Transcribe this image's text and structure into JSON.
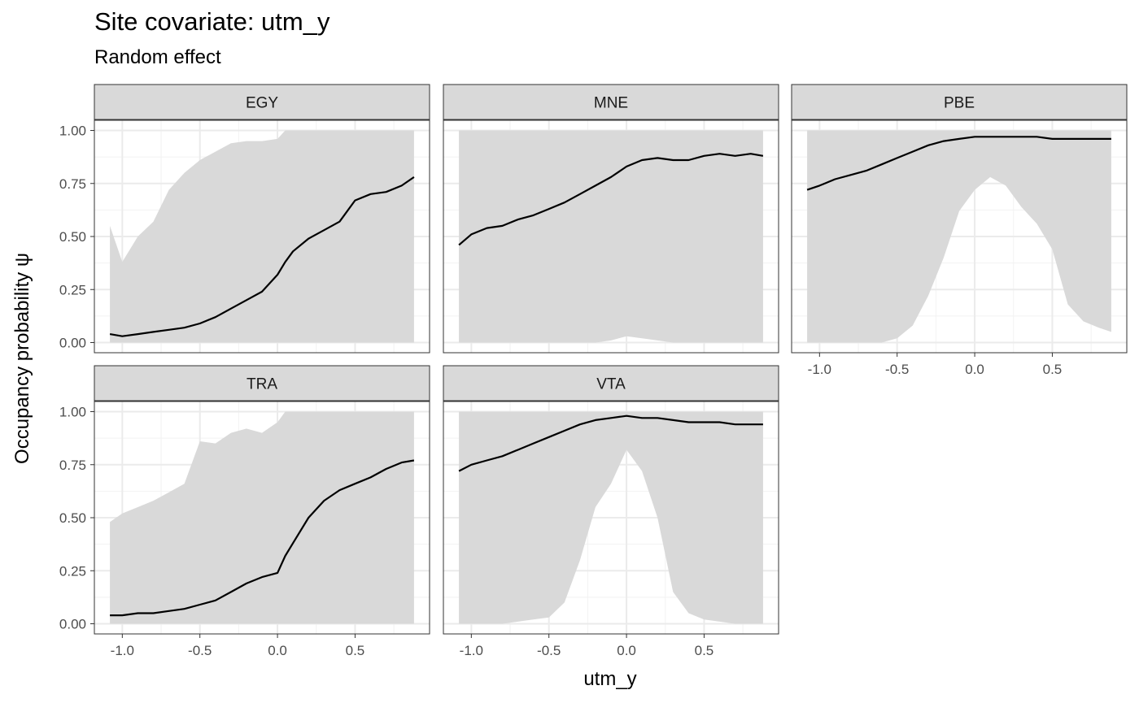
{
  "title": "Site covariate: utm_y",
  "subtitle": "Random effect",
  "chart_data": {
    "type": "line",
    "title": "Site covariate: utm_y",
    "subtitle": "Random effect",
    "xlabel": "utm_y",
    "ylabel": "Occupancy probability  ψ",
    "xlim": [
      -1.08,
      0.88
    ],
    "ylim": [
      0,
      1
    ],
    "xticks": [
      -1.0,
      -0.5,
      0.0,
      0.5
    ],
    "xtick_labels": [
      "-1.0",
      "-0.5",
      "0.0",
      "0.5"
    ],
    "yticks": [
      0,
      0.25,
      0.5,
      0.75,
      1.0
    ],
    "ytick_labels": [
      "0.00",
      "0.25",
      "0.50",
      "0.75",
      "1.00"
    ],
    "grid": true,
    "band_color": "#d9d9d9",
    "line_color": "#000000",
    "panels": [
      {
        "name": "EGY",
        "x": [
          -1.08,
          -1.0,
          -0.9,
          -0.8,
          -0.7,
          -0.6,
          -0.5,
          -0.4,
          -0.3,
          -0.2,
          -0.1,
          0.0,
          0.05,
          0.1,
          0.2,
          0.3,
          0.4,
          0.5,
          0.6,
          0.7,
          0.8,
          0.88
        ],
        "mean": [
          0.04,
          0.03,
          0.04,
          0.05,
          0.06,
          0.07,
          0.09,
          0.12,
          0.16,
          0.2,
          0.24,
          0.32,
          0.38,
          0.43,
          0.49,
          0.53,
          0.57,
          0.67,
          0.7,
          0.71,
          0.74,
          0.78
        ],
        "lower": [
          0.0,
          0.0,
          0.0,
          0.0,
          0.0,
          0.0,
          0.0,
          0.0,
          0.0,
          0.0,
          0.0,
          0.0,
          0.0,
          0.0,
          0.0,
          0.0,
          0.0,
          0.0,
          0.0,
          0.0,
          0.0,
          0.0
        ],
        "upper": [
          0.55,
          0.38,
          0.5,
          0.57,
          0.72,
          0.8,
          0.86,
          0.9,
          0.94,
          0.95,
          0.95,
          0.96,
          1.0,
          1.0,
          1.0,
          1.0,
          1.0,
          1.0,
          1.0,
          1.0,
          1.0,
          1.0
        ]
      },
      {
        "name": "MNE",
        "x": [
          -1.08,
          -1.0,
          -0.9,
          -0.8,
          -0.7,
          -0.6,
          -0.5,
          -0.4,
          -0.3,
          -0.2,
          -0.1,
          0.0,
          0.1,
          0.2,
          0.3,
          0.4,
          0.5,
          0.6,
          0.7,
          0.8,
          0.88
        ],
        "mean": [
          0.46,
          0.51,
          0.54,
          0.55,
          0.58,
          0.6,
          0.63,
          0.66,
          0.7,
          0.74,
          0.78,
          0.83,
          0.86,
          0.87,
          0.86,
          0.86,
          0.88,
          0.89,
          0.88,
          0.89,
          0.88
        ],
        "lower": [
          0.0,
          0.0,
          0.0,
          0.0,
          0.0,
          0.0,
          0.0,
          0.0,
          0.0,
          0.0,
          0.01,
          0.03,
          0.02,
          0.01,
          0.0,
          0.0,
          0.0,
          0.0,
          0.0,
          0.0,
          0.0
        ],
        "upper": [
          1.0,
          1.0,
          1.0,
          1.0,
          1.0,
          1.0,
          1.0,
          1.0,
          1.0,
          1.0,
          1.0,
          1.0,
          1.0,
          1.0,
          1.0,
          1.0,
          1.0,
          1.0,
          1.0,
          1.0,
          1.0
        ]
      },
      {
        "name": "PBE",
        "x": [
          -1.08,
          -1.0,
          -0.9,
          -0.8,
          -0.7,
          -0.6,
          -0.5,
          -0.4,
          -0.3,
          -0.2,
          -0.1,
          0.0,
          0.1,
          0.2,
          0.3,
          0.4,
          0.5,
          0.6,
          0.7,
          0.8,
          0.88
        ],
        "mean": [
          0.72,
          0.74,
          0.77,
          0.79,
          0.81,
          0.84,
          0.87,
          0.9,
          0.93,
          0.95,
          0.96,
          0.97,
          0.97,
          0.97,
          0.97,
          0.97,
          0.96,
          0.96,
          0.96,
          0.96,
          0.96
        ],
        "lower": [
          0.0,
          0.0,
          0.0,
          0.0,
          0.0,
          0.0,
          0.02,
          0.08,
          0.22,
          0.4,
          0.62,
          0.72,
          0.78,
          0.74,
          0.64,
          0.56,
          0.44,
          0.18,
          0.1,
          0.07,
          0.05
        ],
        "upper": [
          1.0,
          1.0,
          1.0,
          1.0,
          1.0,
          1.0,
          1.0,
          1.0,
          1.0,
          1.0,
          1.0,
          1.0,
          1.0,
          1.0,
          1.0,
          1.0,
          1.0,
          1.0,
          1.0,
          1.0,
          1.0
        ]
      },
      {
        "name": "TRA",
        "x": [
          -1.08,
          -1.0,
          -0.9,
          -0.8,
          -0.7,
          -0.6,
          -0.5,
          -0.4,
          -0.3,
          -0.2,
          -0.1,
          0.0,
          0.05,
          0.1,
          0.2,
          0.3,
          0.4,
          0.5,
          0.6,
          0.7,
          0.8,
          0.88
        ],
        "mean": [
          0.04,
          0.04,
          0.05,
          0.05,
          0.06,
          0.07,
          0.09,
          0.11,
          0.15,
          0.19,
          0.22,
          0.24,
          0.32,
          0.38,
          0.5,
          0.58,
          0.63,
          0.66,
          0.69,
          0.73,
          0.76,
          0.77
        ],
        "lower": [
          0.0,
          0.0,
          0.0,
          0.0,
          0.0,
          0.0,
          0.0,
          0.0,
          0.0,
          0.0,
          0.0,
          0.0,
          0.0,
          0.0,
          0.0,
          0.0,
          0.0,
          0.0,
          0.0,
          0.0,
          0.0,
          0.0
        ],
        "upper": [
          0.48,
          0.52,
          0.55,
          0.58,
          0.62,
          0.66,
          0.86,
          0.85,
          0.9,
          0.92,
          0.9,
          0.95,
          1.0,
          1.0,
          1.0,
          1.0,
          1.0,
          1.0,
          1.0,
          1.0,
          1.0,
          1.0
        ]
      },
      {
        "name": "VTA",
        "x": [
          -1.08,
          -1.0,
          -0.9,
          -0.8,
          -0.7,
          -0.6,
          -0.5,
          -0.4,
          -0.3,
          -0.2,
          -0.1,
          0.0,
          0.1,
          0.2,
          0.3,
          0.4,
          0.5,
          0.6,
          0.7,
          0.8,
          0.88
        ],
        "mean": [
          0.72,
          0.75,
          0.77,
          0.79,
          0.82,
          0.85,
          0.88,
          0.91,
          0.94,
          0.96,
          0.97,
          0.98,
          0.97,
          0.97,
          0.96,
          0.95,
          0.95,
          0.95,
          0.94,
          0.94,
          0.94
        ],
        "lower": [
          0.0,
          0.0,
          0.0,
          0.0,
          0.01,
          0.02,
          0.03,
          0.1,
          0.3,
          0.55,
          0.66,
          0.82,
          0.72,
          0.5,
          0.15,
          0.05,
          0.02,
          0.01,
          0.0,
          0.0,
          0.0
        ],
        "upper": [
          1.0,
          1.0,
          1.0,
          1.0,
          1.0,
          1.0,
          1.0,
          1.0,
          1.0,
          1.0,
          1.0,
          1.0,
          1.0,
          1.0,
          1.0,
          1.0,
          1.0,
          1.0,
          1.0,
          1.0,
          1.0
        ]
      }
    ]
  }
}
